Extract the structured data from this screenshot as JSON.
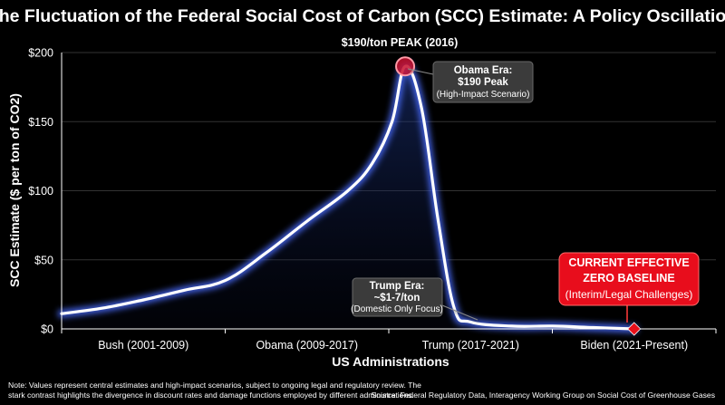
{
  "chart_data": {
    "type": "line",
    "title": "The Fluctuation of the Federal Social Cost of Carbon (SCC) Estimate: A Policy Oscillation",
    "xlabel": "US Administrations",
    "ylabel": "SCC Estimate ($ per ton of CO2)",
    "ylim": [
      0,
      200
    ],
    "y_ticks": [
      0,
      50,
      100,
      150,
      200
    ],
    "y_tick_labels": [
      "$0",
      "$50",
      "$100",
      "$150",
      "$200"
    ],
    "xlim": [
      0,
      4
    ],
    "categories": [
      "Bush (2001-2009)",
      "Obama (2009-2017)",
      "Trump (2017-2021)",
      "Biden (2021-Present)"
    ],
    "grid": true,
    "series": [
      {
        "x": [
          0,
          0.25,
          0.5,
          0.75,
          1.0,
          1.25,
          1.5,
          1.75,
          1.9,
          2.02,
          2.1,
          2.2,
          2.3,
          2.4,
          2.5,
          2.75,
          3.0,
          3.25,
          3.5
        ],
        "values": [
          11,
          15,
          21,
          28,
          35,
          55,
          78,
          100,
          120,
          150,
          190,
          160,
          80,
          15,
          5,
          2,
          2,
          1,
          0
        ]
      }
    ],
    "annotations": {
      "peak_label": "$190/ton PEAK (2016)",
      "obama_line1": "Obama Era:",
      "obama_line2": "$190 Peak",
      "obama_line3": "(High-Impact Scenario)",
      "trump_line1": "Trump Era:",
      "trump_line2": "~$1-7/ton",
      "trump_line3": "(Domestic Only Focus)",
      "current_line1": "CURRENT EFFECTIVE",
      "current_line2": "ZERO BASELINE",
      "current_line3": "(Interim/Legal Challenges)"
    },
    "note_line1": "Note: Values represent central estimates and high-impact scenarios, subject to ongoing legal and regulatory review. The",
    "note_line2": "stark contrast highlights the divergence in discount rates and damage functions employed by different administrations.",
    "source": "Source: Federal Regulatory Data, Interagency Working Group on Social Cost of Greenhouse Gases",
    "colors": {
      "background": "#000000",
      "line": "#ffffff",
      "glow": "#4a6cff",
      "peak_marker": "#c8102e",
      "callout_bg": "#3a3a3a",
      "red_callout": "#e8101a",
      "grid": "#333333"
    }
  }
}
